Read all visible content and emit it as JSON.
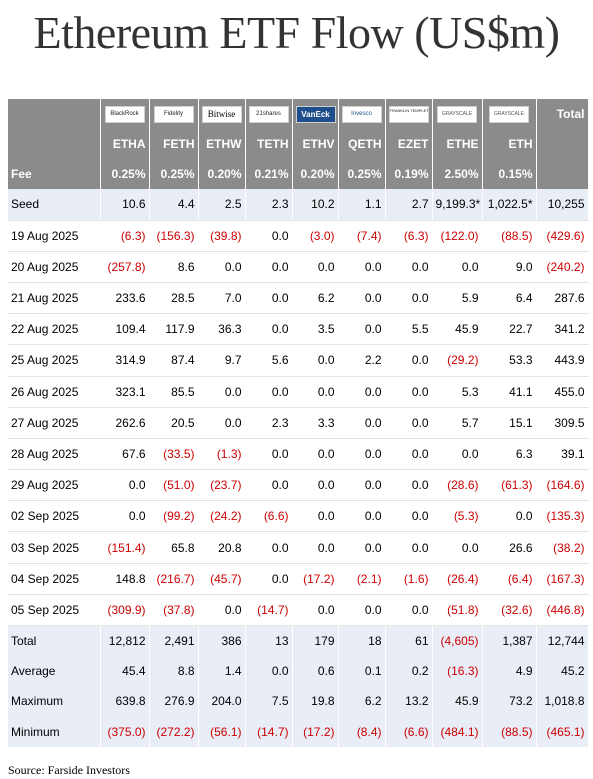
{
  "title": "Ethereum ETF Flow (US$m)",
  "issuer_logos": [
    "BlackRock",
    "Fidelity",
    "Bitwise",
    "21shares",
    "VanEck",
    "Invesco",
    "FRANKLIN TEMPLETON",
    "GRAYSCALE",
    "GRAYSCALE"
  ],
  "total_label": "Total",
  "tickers": [
    "ETHA",
    "FETH",
    "ETHW",
    "TETH",
    "ETHV",
    "QETH",
    "EZET",
    "ETHE",
    "ETH"
  ],
  "fee_row": {
    "label": "Fee",
    "values": [
      "0.25%",
      "0.25%",
      "0.20%",
      "0.21%",
      "0.20%",
      "0.25%",
      "0.19%",
      "2.50%",
      "0.15%"
    ]
  },
  "rows": [
    {
      "label": "Seed",
      "values": [
        "10.6",
        "4.4",
        "2.5",
        "2.3",
        "10.2",
        "1.1",
        "2.7",
        "9,199.3*",
        "1,022.5*"
      ],
      "total": "10,255"
    },
    {
      "label": "19 Aug 2025",
      "values": [
        "(6.3)",
        "(156.3)",
        "(39.8)",
        "0.0",
        "(3.0)",
        "(7.4)",
        "(6.3)",
        "(122.0)",
        "(88.5)"
      ],
      "total": "(429.6)"
    },
    {
      "label": "20 Aug 2025",
      "values": [
        "(257.8)",
        "8.6",
        "0.0",
        "0.0",
        "0.0",
        "0.0",
        "0.0",
        "0.0",
        "9.0"
      ],
      "total": "(240.2)"
    },
    {
      "label": "21 Aug 2025",
      "values": [
        "233.6",
        "28.5",
        "7.0",
        "0.0",
        "6.2",
        "0.0",
        "0.0",
        "5.9",
        "6.4"
      ],
      "total": "287.6"
    },
    {
      "label": "22 Aug 2025",
      "values": [
        "109.4",
        "117.9",
        "36.3",
        "0.0",
        "3.5",
        "0.0",
        "5.5",
        "45.9",
        "22.7"
      ],
      "total": "341.2"
    },
    {
      "label": "25 Aug 2025",
      "values": [
        "314.9",
        "87.4",
        "9.7",
        "5.6",
        "0.0",
        "2.2",
        "0.0",
        "(29.2)",
        "53.3"
      ],
      "total": "443.9"
    },
    {
      "label": "26 Aug 2025",
      "values": [
        "323.1",
        "85.5",
        "0.0",
        "0.0",
        "0.0",
        "0.0",
        "0.0",
        "5.3",
        "41.1"
      ],
      "total": "455.0"
    },
    {
      "label": "27 Aug 2025",
      "values": [
        "262.6",
        "20.5",
        "0.0",
        "2.3",
        "3.3",
        "0.0",
        "0.0",
        "5.7",
        "15.1"
      ],
      "total": "309.5"
    },
    {
      "label": "28 Aug 2025",
      "values": [
        "67.6",
        "(33.5)",
        "(1.3)",
        "0.0",
        "0.0",
        "0.0",
        "0.0",
        "0.0",
        "6.3"
      ],
      "total": "39.1"
    },
    {
      "label": "29 Aug 2025",
      "values": [
        "0.0",
        "(51.0)",
        "(23.7)",
        "0.0",
        "0.0",
        "0.0",
        "0.0",
        "(28.6)",
        "(61.3)"
      ],
      "total": "(164.6)"
    },
    {
      "label": "02 Sep 2025",
      "values": [
        "0.0",
        "(99.2)",
        "(24.2)",
        "(6.6)",
        "0.0",
        "0.0",
        "0.0",
        "(5.3)",
        "0.0"
      ],
      "total": "(135.3)"
    },
    {
      "label": "03 Sep 2025",
      "values": [
        "(151.4)",
        "65.8",
        "20.8",
        "0.0",
        "0.0",
        "0.0",
        "0.0",
        "0.0",
        "26.6"
      ],
      "total": "(38.2)"
    },
    {
      "label": "04 Sep 2025",
      "values": [
        "148.8",
        "(216.7)",
        "(45.7)",
        "0.0",
        "(17.2)",
        "(2.1)",
        "(1.6)",
        "(26.4)",
        "(6.4)"
      ],
      "total": "(167.3)"
    },
    {
      "label": "05 Sep 2025",
      "values": [
        "(309.9)",
        "(37.8)",
        "0.0",
        "(14.7)",
        "0.0",
        "0.0",
        "0.0",
        "(51.8)",
        "(32.6)"
      ],
      "total": "(446.8)"
    }
  ],
  "summary": [
    {
      "label": "Total",
      "values": [
        "12,812",
        "2,491",
        "386",
        "13",
        "179",
        "18",
        "61",
        "(4,605)",
        "1,387"
      ],
      "total": "12,744"
    },
    {
      "label": "Average",
      "values": [
        "45.4",
        "8.8",
        "1.4",
        "0.0",
        "0.6",
        "0.1",
        "0.2",
        "(16.3)",
        "4.9"
      ],
      "total": "45.2"
    },
    {
      "label": "Maximum",
      "values": [
        "639.8",
        "276.9",
        "204.0",
        "7.5",
        "19.8",
        "6.2",
        "13.2",
        "45.9",
        "73.2"
      ],
      "total": "1,018.8"
    },
    {
      "label": "Minimum",
      "values": [
        "(375.0)",
        "(272.2)",
        "(56.1)",
        "(14.7)",
        "(17.2)",
        "(8.4)",
        "(6.6)",
        "(484.1)",
        "(88.5)"
      ],
      "total": "(465.1)"
    }
  ],
  "source": "Source: Farside Investors",
  "colors": {
    "header_gray": "#8b8b8b",
    "negative_red": "#cc0000",
    "light_blue_row": "#e8edf6"
  }
}
